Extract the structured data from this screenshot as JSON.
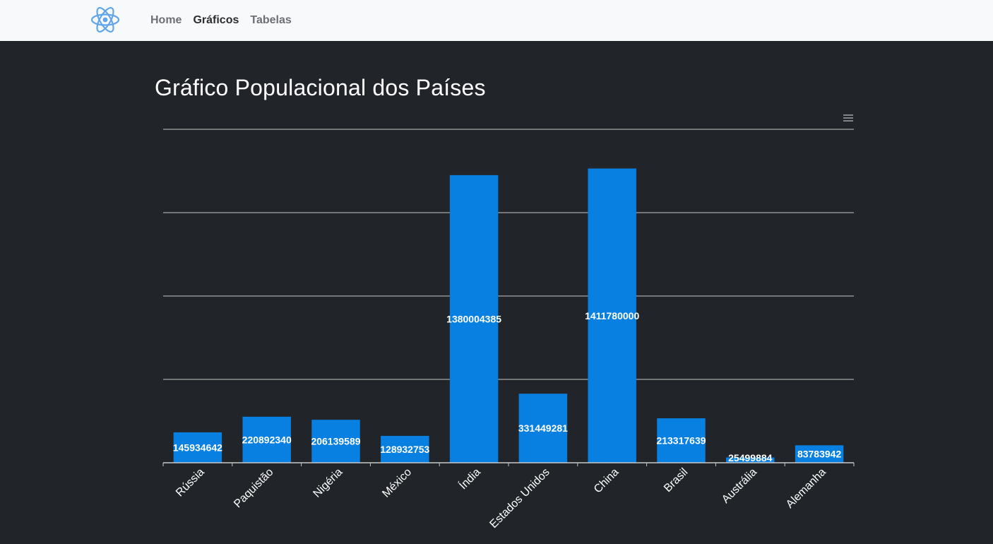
{
  "navbar": {
    "brand_icon": "react-atom-icon",
    "links": [
      {
        "label": "Home",
        "active": false
      },
      {
        "label": "Gráficos",
        "active": true
      },
      {
        "label": "Tabelas",
        "active": false
      }
    ]
  },
  "page": {
    "title": "Gráfico Populacional dos Países",
    "menu_icon": "hamburger-menu-icon"
  },
  "colors": {
    "bar": "#0880e2",
    "background": "#212529",
    "navbar": "#f8f9fa",
    "label": "#ffffff"
  },
  "chart_data": {
    "type": "bar",
    "title": "Gráfico Populacional dos Países",
    "categories": [
      "Rússia",
      "Paquistão",
      "Nigéria",
      "México",
      "Índia",
      "Estados Unidos",
      "China",
      "Brasil",
      "Austrália",
      "Alemanha"
    ],
    "values": [
      145934642,
      220892340,
      206139589,
      128932753,
      1380004385,
      331449281,
      1411780000,
      213317639,
      25499884,
      83783942
    ],
    "ylim": [
      0,
      1600000000
    ],
    "grid": true,
    "legend": "none",
    "xlabel": "",
    "ylabel": ""
  }
}
